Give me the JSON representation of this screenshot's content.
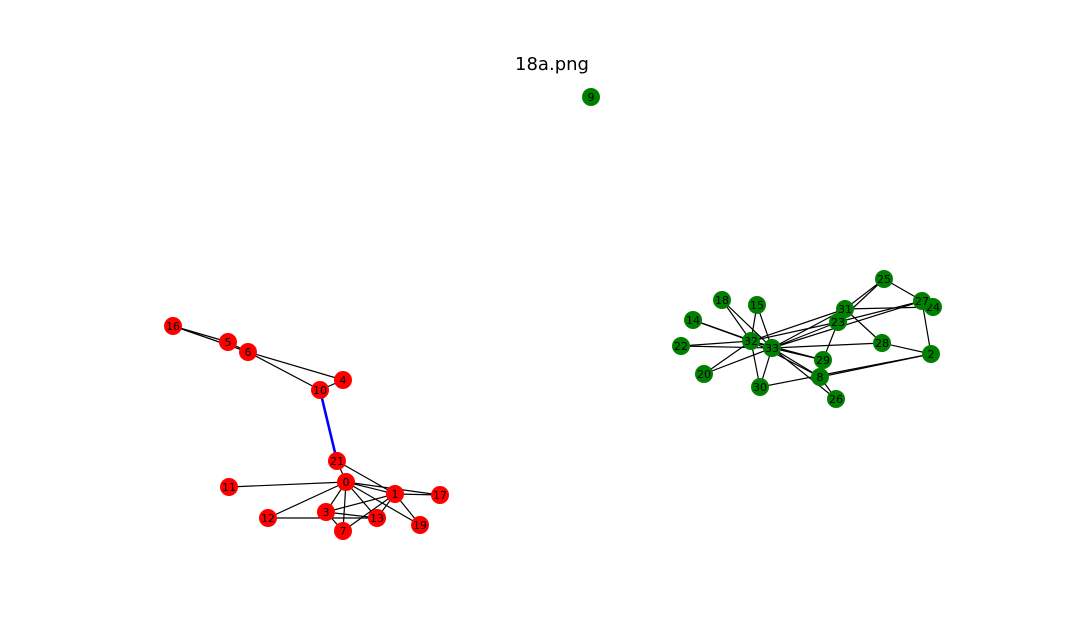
{
  "title": "18a.png",
  "colors": {
    "red": "#ff0000",
    "green": "#008000",
    "edge": "#000000",
    "highlight_edge": "#0000ff"
  },
  "nodes": [
    {
      "id": "0",
      "group": "red"
    },
    {
      "id": "1",
      "group": "red"
    },
    {
      "id": "3",
      "group": "red"
    },
    {
      "id": "4",
      "group": "red"
    },
    {
      "id": "5",
      "group": "red"
    },
    {
      "id": "6",
      "group": "red"
    },
    {
      "id": "7",
      "group": "red"
    },
    {
      "id": "10",
      "group": "red"
    },
    {
      "id": "11",
      "group": "red"
    },
    {
      "id": "12",
      "group": "red"
    },
    {
      "id": "13",
      "group": "red"
    },
    {
      "id": "16",
      "group": "red"
    },
    {
      "id": "17",
      "group": "red"
    },
    {
      "id": "19",
      "group": "red"
    },
    {
      "id": "21",
      "group": "red"
    },
    {
      "id": "9",
      "group": "green"
    },
    {
      "id": "2",
      "group": "green"
    },
    {
      "id": "8",
      "group": "green"
    },
    {
      "id": "14",
      "group": "green"
    },
    {
      "id": "15",
      "group": "green"
    },
    {
      "id": "18",
      "group": "green"
    },
    {
      "id": "20",
      "group": "green"
    },
    {
      "id": "22",
      "group": "green"
    },
    {
      "id": "23",
      "group": "green"
    },
    {
      "id": "24",
      "group": "green"
    },
    {
      "id": "25",
      "group": "green"
    },
    {
      "id": "26",
      "group": "green"
    },
    {
      "id": "27",
      "group": "green"
    },
    {
      "id": "28",
      "group": "green"
    },
    {
      "id": "29",
      "group": "green"
    },
    {
      "id": "30",
      "group": "green"
    },
    {
      "id": "31",
      "group": "green"
    },
    {
      "id": "32",
      "group": "green"
    },
    {
      "id": "33",
      "group": "green"
    }
  ],
  "edges": [
    [
      "16",
      "5"
    ],
    [
      "16",
      "6"
    ],
    [
      "5",
      "6"
    ],
    [
      "6",
      "4"
    ],
    [
      "6",
      "10"
    ],
    [
      "4",
      "10"
    ],
    [
      "21",
      "0"
    ],
    [
      "21",
      "1"
    ],
    [
      "11",
      "0"
    ],
    [
      "12",
      "0"
    ],
    [
      "12",
      "13"
    ],
    [
      "0",
      "1"
    ],
    [
      "0",
      "3"
    ],
    [
      "0",
      "7"
    ],
    [
      "0",
      "13"
    ],
    [
      "0",
      "17"
    ],
    [
      "0",
      "19"
    ],
    [
      "1",
      "17"
    ],
    [
      "1",
      "19"
    ],
    [
      "1",
      "3"
    ],
    [
      "1",
      "7"
    ],
    [
      "1",
      "13"
    ],
    [
      "3",
      "7"
    ],
    [
      "3",
      "13"
    ],
    [
      "14",
      "32"
    ],
    [
      "14",
      "33"
    ],
    [
      "18",
      "32"
    ],
    [
      "18",
      "33"
    ],
    [
      "15",
      "32"
    ],
    [
      "15",
      "33"
    ],
    [
      "22",
      "32"
    ],
    [
      "22",
      "33"
    ],
    [
      "20",
      "32"
    ],
    [
      "20",
      "33"
    ],
    [
      "30",
      "32"
    ],
    [
      "30",
      "33"
    ],
    [
      "30",
      "2"
    ],
    [
      "32",
      "33"
    ],
    [
      "32",
      "23"
    ],
    [
      "32",
      "31"
    ],
    [
      "32",
      "8"
    ],
    [
      "32",
      "29"
    ],
    [
      "33",
      "23"
    ],
    [
      "33",
      "31"
    ],
    [
      "33",
      "8"
    ],
    [
      "33",
      "29"
    ],
    [
      "33",
      "28"
    ],
    [
      "33",
      "26"
    ],
    [
      "33",
      "27"
    ],
    [
      "23",
      "25"
    ],
    [
      "23",
      "27"
    ],
    [
      "23",
      "29"
    ],
    [
      "31",
      "25"
    ],
    [
      "31",
      "24"
    ],
    [
      "31",
      "28"
    ],
    [
      "25",
      "24"
    ],
    [
      "27",
      "2"
    ],
    [
      "28",
      "2"
    ],
    [
      "8",
      "2"
    ],
    [
      "8",
      "26"
    ]
  ],
  "highlight_edges": [
    [
      "10",
      "21"
    ]
  ]
}
